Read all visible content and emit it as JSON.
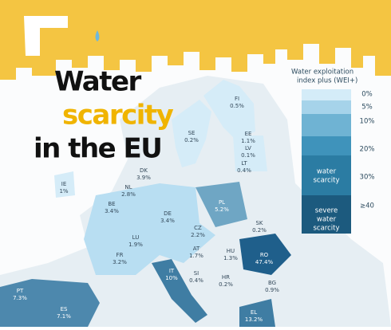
{
  "title": {
    "lines": [
      "Water",
      "scarcity",
      "in the EU"
    ]
  },
  "legend": {
    "title_lines": [
      "Water exploitation",
      "index plus (WEI+)"
    ],
    "ticks": [
      "0%",
      "5%",
      "10%",
      "20%",
      "30%",
      "≥40"
    ],
    "bands": [
      [
        "water",
        "scarcity"
      ],
      [
        "severe",
        "water",
        "scarcity"
      ]
    ]
  },
  "countries": [
    {
      "code": "FI",
      "value": "0.5%"
    },
    {
      "code": "SE",
      "value": "0.2%"
    },
    {
      "code": "EE",
      "value": "1.1%"
    },
    {
      "code": "LV",
      "value": "0.1%"
    },
    {
      "code": "LT",
      "value": "0.4%"
    },
    {
      "code": "DK",
      "value": "3.9%"
    },
    {
      "code": "IE",
      "value": "1%"
    },
    {
      "code": "NL",
      "value": "2.8%"
    },
    {
      "code": "BE",
      "value": "3.4%"
    },
    {
      "code": "DE",
      "value": "3.4%"
    },
    {
      "code": "PL",
      "value": "5.2%"
    },
    {
      "code": "SK",
      "value": "0.2%"
    },
    {
      "code": "CZ",
      "value": "2.2%"
    },
    {
      "code": "LU",
      "value": "1.9%"
    },
    {
      "code": "FR",
      "value": "3.2%"
    },
    {
      "code": "AT",
      "value": "1.7%"
    },
    {
      "code": "HU",
      "value": "1.3%"
    },
    {
      "code": "RO",
      "value": "47.4%"
    },
    {
      "code": "SI",
      "value": "0.4%"
    },
    {
      "code": "HR",
      "value": "0.2%"
    },
    {
      "code": "IT",
      "value": "10%"
    },
    {
      "code": "BG",
      "value": "0.9%"
    },
    {
      "code": "PT",
      "value": "7.3%"
    },
    {
      "code": "ES",
      "value": "7.1%"
    },
    {
      "code": "EL",
      "value": "13.2%"
    }
  ]
}
